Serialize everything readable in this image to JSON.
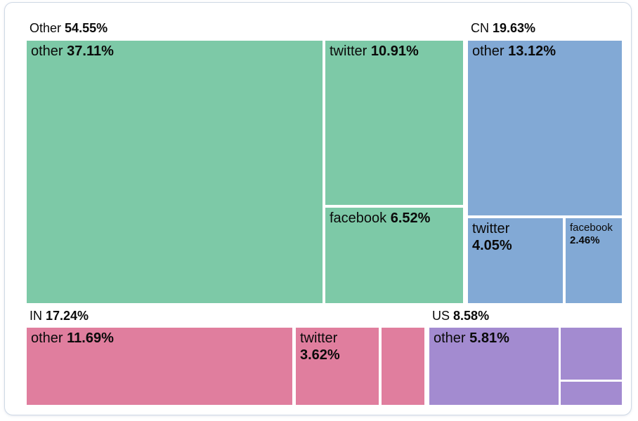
{
  "page": {
    "background_color": "#ffffff",
    "card_border_color": "#cfd9e5"
  },
  "chart_data": {
    "type": "treemap",
    "title": "",
    "metric": "share of total (%)",
    "legend_position": "none",
    "groups": [
      {
        "name": "Other",
        "share_label": "54.55%",
        "value": 54.55,
        "color": "#7dc9a7",
        "children": [
          {
            "name": "other",
            "share_label": "37.11%",
            "value": 37.11
          },
          {
            "name": "twitter",
            "share_label": "10.91%",
            "value": 10.91
          },
          {
            "name": "facebook",
            "share_label": "6.52%",
            "value": 6.52
          }
        ]
      },
      {
        "name": "CN",
        "share_label": "19.63%",
        "value": 19.63,
        "color": "#82a9d5",
        "children": [
          {
            "name": "other",
            "share_label": "13.12%",
            "value": 13.12
          },
          {
            "name": "twitter",
            "share_label": "4.05%",
            "value": 4.05
          },
          {
            "name": "facebook",
            "share_label": "2.46%",
            "value": 2.46
          }
        ]
      },
      {
        "name": "IN",
        "share_label": "17.24%",
        "value": 17.24,
        "color": "#e07e9e",
        "children": [
          {
            "name": "other",
            "share_label": "11.69%",
            "value": 11.69
          },
          {
            "name": "twitter",
            "share_label": "3.62%",
            "value": 3.62
          },
          {
            "name": "",
            "share_label": ""
          }
        ]
      },
      {
        "name": "US",
        "share_label": "8.58%",
        "value": 8.58,
        "color": "#a38bd0",
        "children": [
          {
            "name": "other",
            "share_label": "5.81%",
            "value": 5.81
          },
          {
            "name": "",
            "share_label": ""
          },
          {
            "name": "",
            "share_label": ""
          }
        ]
      }
    ]
  }
}
